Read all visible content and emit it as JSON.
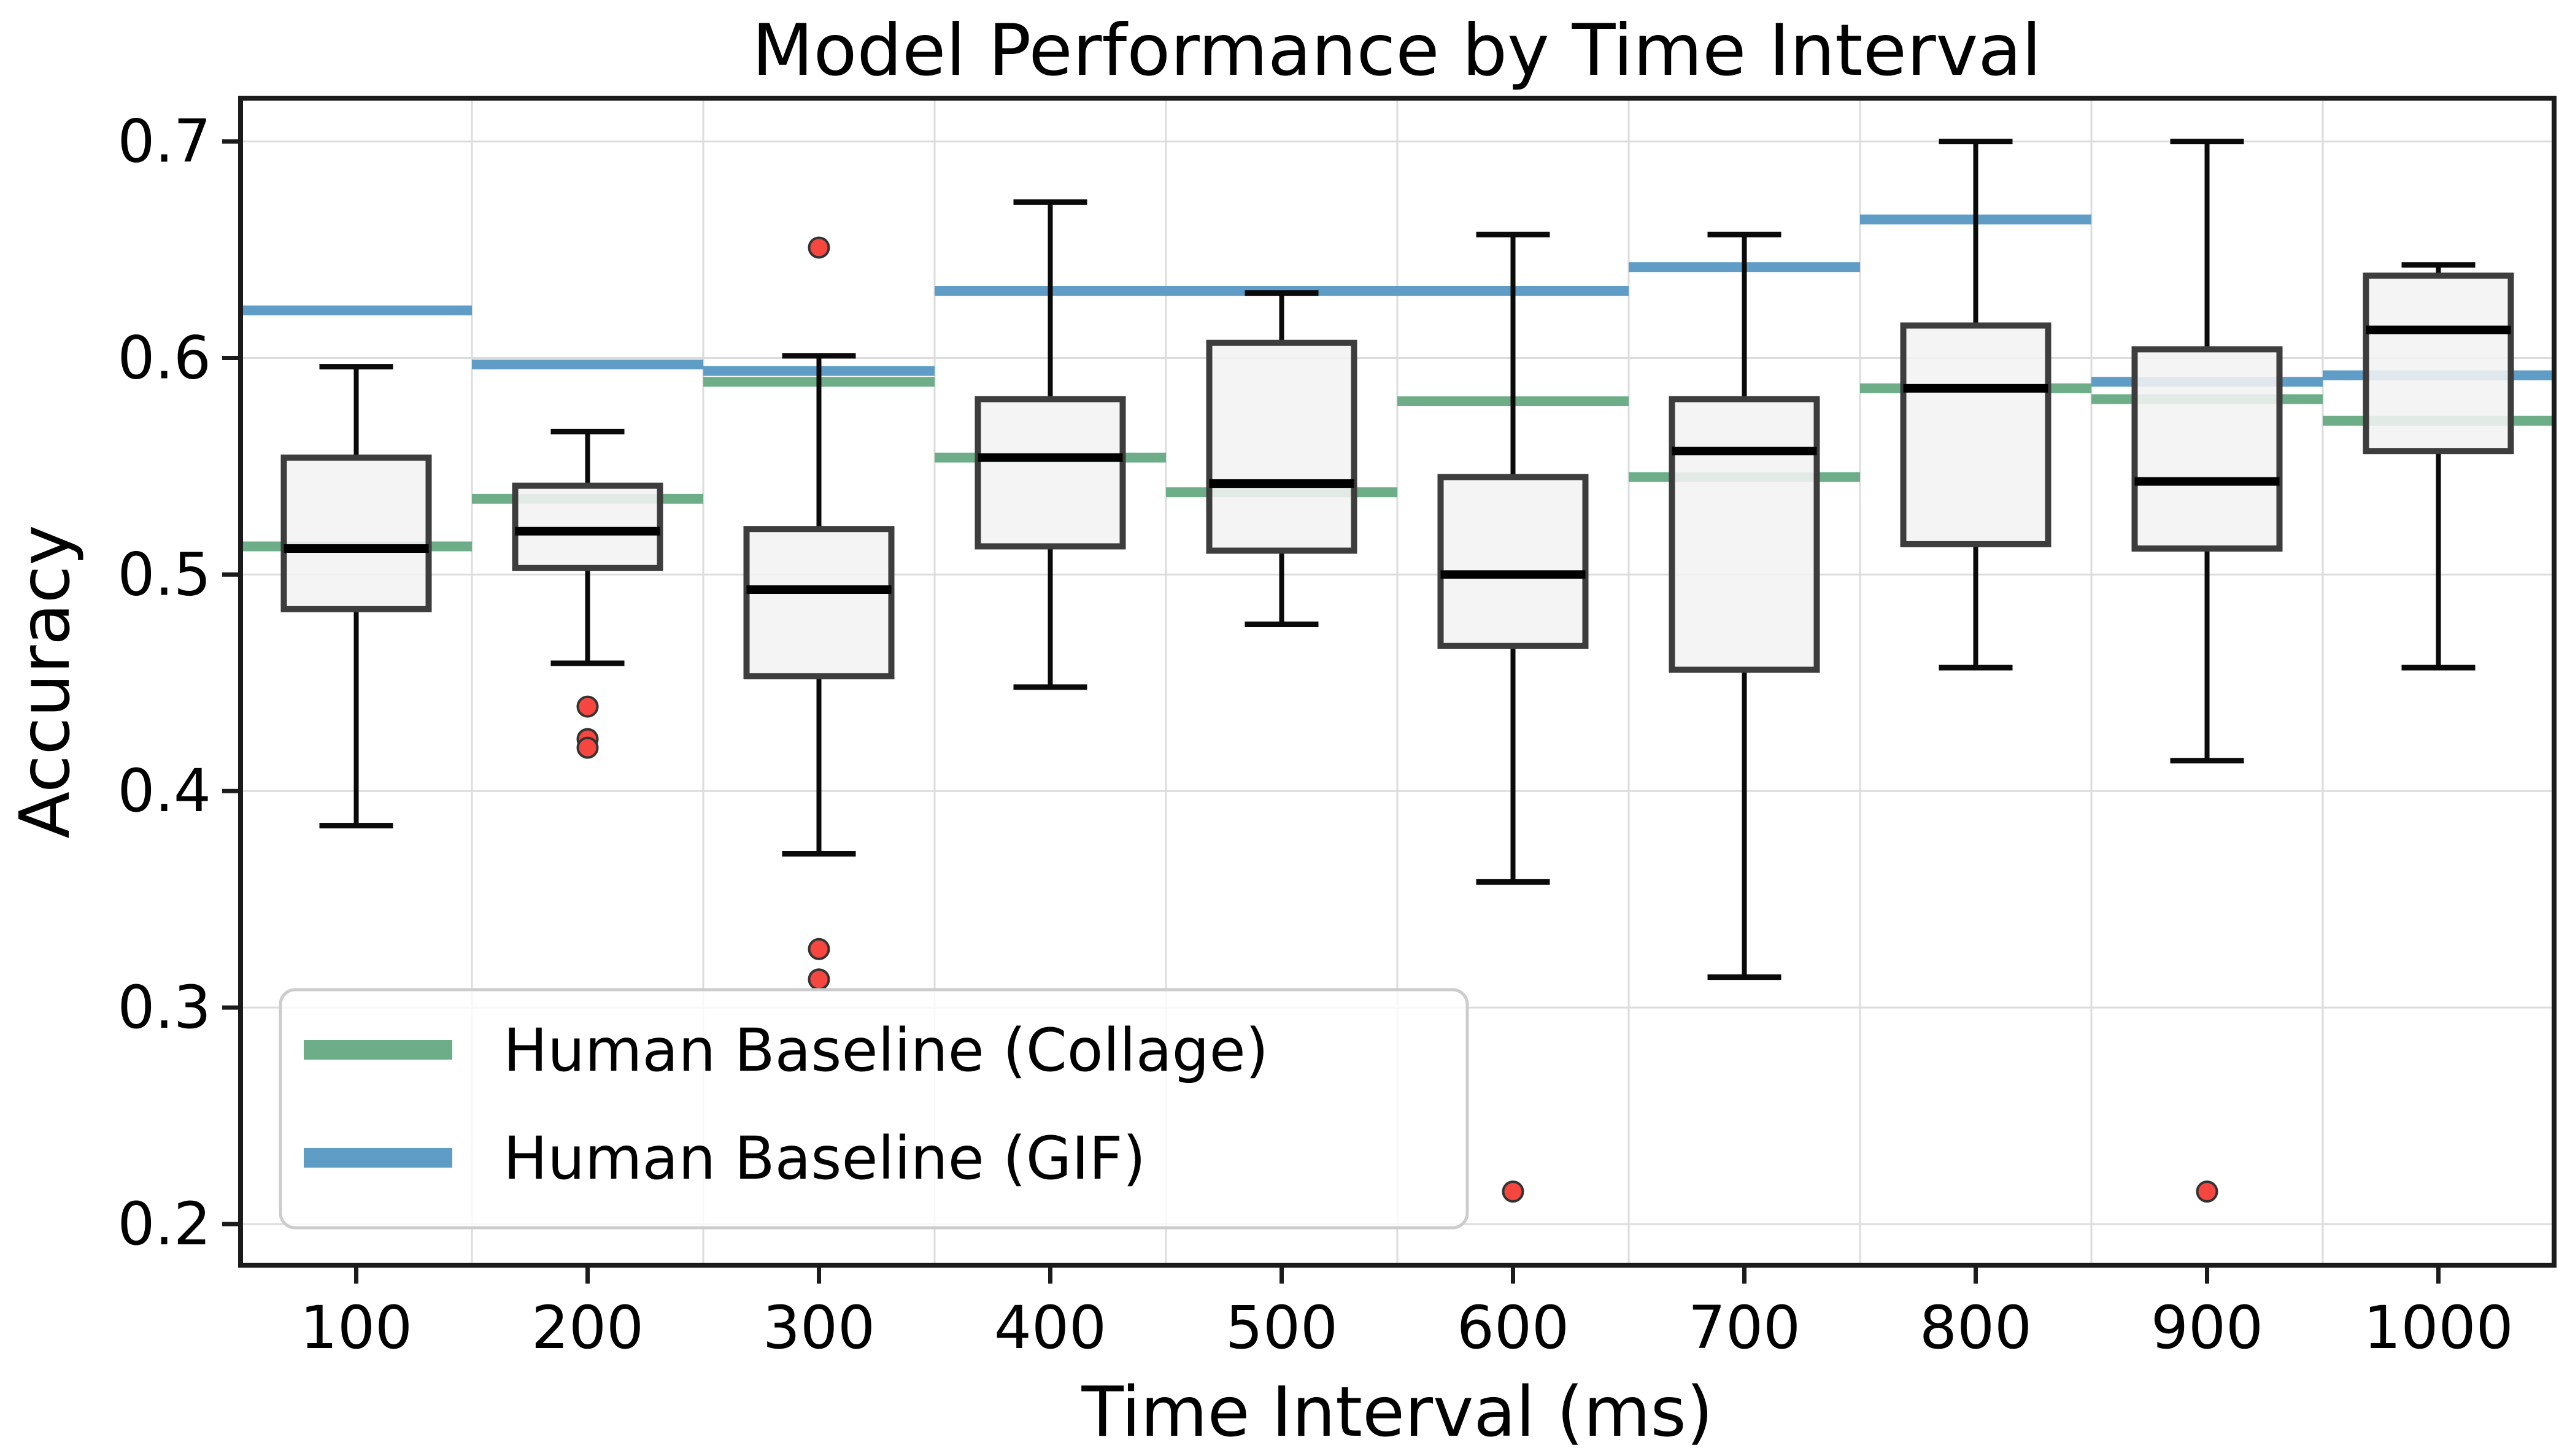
{
  "title": "Model Performance by Time Interval",
  "axes": {
    "x_label": "Time Interval (ms)",
    "y_label": "Accuracy"
  },
  "legend": {
    "items": [
      {
        "label": "Human Baseline (Collage)",
        "color": "#6dae89"
      },
      {
        "label": "Human Baseline (GIF)",
        "color": "#5f9dc7"
      }
    ]
  },
  "colors": {
    "baseline_collage": "#6dae89",
    "baseline_gif": "#5f9dc7",
    "outlier_fill": "#f5473f",
    "outlier_edge": "#333333",
    "box_fill": "rgba(243,243,243,0.88)",
    "box_edge": "#3d3d3d",
    "median": "#000000",
    "whisker": "#0a0a0a",
    "grid": "#dcdcdc",
    "spine": "#1b1b1b",
    "legend_bg": "#ffffff",
    "legend_border": "#cccccc"
  },
  "chart_data": {
    "type": "box",
    "title": "Model Performance by Time Interval",
    "xlabel": "Time Interval (ms)",
    "ylabel": "Accuracy",
    "categories": [
      "100",
      "200",
      "300",
      "400",
      "500",
      "600",
      "700",
      "800",
      "900",
      "1000"
    ],
    "yticks": [
      0.2,
      0.3,
      0.4,
      0.5,
      0.6,
      0.7
    ],
    "ylim": [
      0.181,
      0.72
    ],
    "grid": true,
    "legend_position": "lower-left",
    "boxes": [
      {
        "category": "100",
        "whisker_low": 0.384,
        "q1": 0.484,
        "median": 0.512,
        "q3": 0.554,
        "whisker_high": 0.596,
        "outliers": []
      },
      {
        "category": "200",
        "whisker_low": 0.459,
        "q1": 0.503,
        "median": 0.52,
        "q3": 0.541,
        "whisker_high": 0.566,
        "outliers": [
          0.439,
          0.424,
          0.42
        ]
      },
      {
        "category": "300",
        "whisker_low": 0.371,
        "q1": 0.453,
        "median": 0.493,
        "q3": 0.521,
        "whisker_high": 0.601,
        "outliers": [
          0.651,
          0.327,
          0.313
        ]
      },
      {
        "category": "400",
        "whisker_low": 0.448,
        "q1": 0.513,
        "median": 0.554,
        "q3": 0.581,
        "whisker_high": 0.672,
        "outliers": []
      },
      {
        "category": "500",
        "whisker_low": 0.477,
        "q1": 0.511,
        "median": 0.542,
        "q3": 0.607,
        "whisker_high": 0.63,
        "outliers": []
      },
      {
        "category": "600",
        "whisker_low": 0.358,
        "q1": 0.467,
        "median": 0.5,
        "q3": 0.545,
        "whisker_high": 0.657,
        "outliers": [
          0.215
        ]
      },
      {
        "category": "700",
        "whisker_low": 0.314,
        "q1": 0.456,
        "median": 0.557,
        "q3": 0.581,
        "whisker_high": 0.657,
        "outliers": []
      },
      {
        "category": "800",
        "whisker_low": 0.457,
        "q1": 0.514,
        "median": 0.586,
        "q3": 0.615,
        "whisker_high": 0.7,
        "outliers": []
      },
      {
        "category": "900",
        "whisker_low": 0.414,
        "q1": 0.512,
        "median": 0.543,
        "q3": 0.604,
        "whisker_high": 0.7,
        "outliers": [
          0.215
        ]
      },
      {
        "category": "1000",
        "whisker_low": 0.457,
        "q1": 0.557,
        "median": 0.613,
        "q3": 0.638,
        "whisker_high": 0.643,
        "outliers": []
      }
    ],
    "baselines": {
      "human_collage": [
        0.513,
        0.535,
        0.589,
        0.554,
        0.538,
        0.58,
        0.545,
        0.586,
        0.581,
        0.571
      ],
      "human_gif": [
        0.622,
        0.597,
        0.594,
        0.631,
        0.631,
        0.631,
        0.642,
        0.664,
        0.589,
        0.592
      ]
    }
  }
}
